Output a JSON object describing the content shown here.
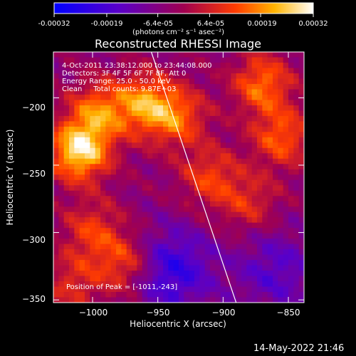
{
  "chart_data": {
    "type": "heatmap",
    "title": "Reconstructed RHESSI Image",
    "xlabel": "Heliocentric X (arcsec)",
    "ylabel": "Heliocentric Y (arcsec)",
    "xlim": [
      -1030,
      -838
    ],
    "ylim": [
      -352,
      -166
    ],
    "xticks": [
      -1000,
      -950,
      -900,
      -850
    ],
    "yticks": [
      -200,
      -250,
      -300,
      -350
    ],
    "x_tick_labels": [
      "−1000",
      "−950",
      "−900",
      "−850"
    ],
    "y_tick_labels": [
      "−200",
      "−250",
      "−300",
      "−350"
    ],
    "colorbar": {
      "range": [
        -0.00032,
        0.00032
      ],
      "tick_labels": [
        "-0.00032",
        "-0.00019",
        "-6.4e-05",
        "6.4e-05",
        "0.00019",
        "0.00032"
      ],
      "units_label": "(photons cm⁻² s⁻¹ asec⁻²)",
      "colors": [
        "#0000ff",
        "#5a00c8",
        "#a00050",
        "#ff3c00",
        "#ffb400",
        "#ffffff"
      ]
    },
    "annotations": [
      "4-Oct-2011 23:38:12.000 to 23:44:08.000",
      "Detectors: 3F 4F 5F 6F 7F 8F, Att 0",
      "Energy Range: 25.0 - 50.0 keV",
      "Clean     Total counts: 9.87E+03"
    ],
    "peak_label": "Position of Peak = [-1011,-243]",
    "peak_position": [
      -1011,
      -243
    ],
    "peak_value": 0.00032,
    "limb_line": [
      [
        -955,
        -166
      ],
      [
        -890,
        -352
      ]
    ],
    "sources": [
      {
        "x": -1010,
        "y": -240,
        "value": 0.00032
      },
      {
        "x": -995,
        "y": -210,
        "value": 0.00019
      },
      {
        "x": -960,
        "y": -205,
        "value": 0.00022
      },
      {
        "x": -935,
        "y": -215,
        "value": 0.00018
      },
      {
        "x": -870,
        "y": -190,
        "value": 0.0002
      },
      {
        "x": -855,
        "y": -230,
        "value": 0.00018
      },
      {
        "x": -1000,
        "y": -300,
        "value": 0.00014
      },
      {
        "x": -975,
        "y": -325,
        "value": 0.00017
      },
      {
        "x": -1015,
        "y": -340,
        "value": 0.00012
      },
      {
        "x": -910,
        "y": -260,
        "value": 0.00015
      },
      {
        "x": -880,
        "y": -280,
        "value": 0.00012
      }
    ],
    "negative_regions": [
      {
        "x": -940,
        "y": -330,
        "value": -0.00019
      },
      {
        "x": -860,
        "y": -330,
        "value": -0.00012
      }
    ]
  },
  "footer": {
    "timestamp": "14-May-2022 21:46"
  }
}
